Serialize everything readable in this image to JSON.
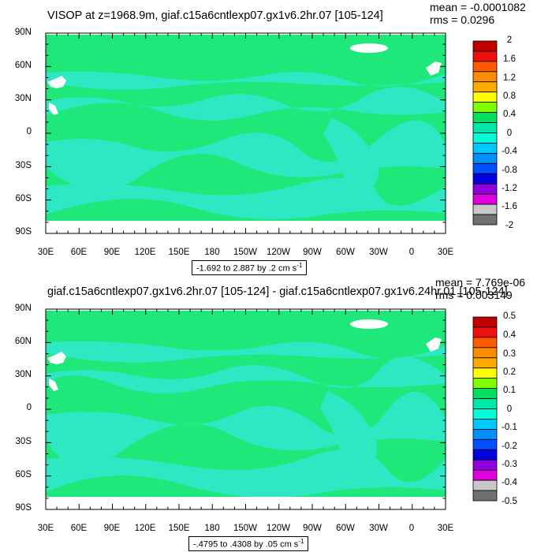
{
  "chart_data": [
    {
      "type": "heatmap",
      "title": "VISOP at z=1968.9m, giaf.c15a6cntlexp07.gx1v6.2hr.07 [105-124]",
      "stats": {
        "mean": "mean = -0.0001082",
        "rms": "rms = 0.0296"
      },
      "xlabel": "",
      "ylabel": "",
      "x_tick_labels": [
        "30E",
        "60E",
        "90E",
        "120E",
        "150E",
        "180",
        "150W",
        "120W",
        "90W",
        "60W",
        "30W",
        "0",
        "30E"
      ],
      "y_tick_labels": [
        "90N",
        "60N",
        "30N",
        "0",
        "30S",
        "60S",
        "90S"
      ],
      "range_label": "-1.692 to 2.887 by .2 cm s",
      "range_unit_sup": "-1",
      "colorbar_labels": [
        "2",
        "1.6",
        "1.2",
        "0.8",
        "0.4",
        "0",
        "-0.4",
        "-0.8",
        "-1.2",
        "-1.6",
        "-2"
      ],
      "colorbar_colors": [
        "#c00000",
        "#ee1010",
        "#ff5a00",
        "#ff8c00",
        "#ffaa00",
        "#ffff00",
        "#80ff00",
        "#00e060",
        "#00e8a8",
        "#00ffd8",
        "#00c8ff",
        "#0090ff",
        "#0050ff",
        "#0000e0",
        "#9000e0",
        "#e000e0",
        "#c8c8c8",
        "#707070"
      ],
      "field_colors": {
        "positive_small": "#1ee87a",
        "negative_small": "#2ee8c4",
        "missing": "#ffffff"
      }
    },
    {
      "type": "heatmap",
      "title": "giaf.c15a6cntlexp07.gx1v6.2hr.07 [105-124] - giaf.c15a6cntlexp07.gx1v6.24hr.01 [105-124]",
      "stats": {
        "mean": "mean = 7.769e-06",
        "rms": "rms = 0.003149"
      },
      "xlabel": "",
      "ylabel": "",
      "x_tick_labels": [
        "30E",
        "60E",
        "90E",
        "120E",
        "150E",
        "180",
        "150W",
        "120W",
        "90W",
        "60W",
        "30W",
        "0",
        "30E"
      ],
      "y_tick_labels": [
        "90N",
        "60N",
        "30N",
        "0",
        "30S",
        "60S",
        "90S"
      ],
      "range_label": "-.4795 to .4308 by .05 cm s",
      "range_unit_sup": "-1",
      "colorbar_labels": [
        "0.5",
        "0.4",
        "0.3",
        "0.2",
        "0.1",
        "0",
        "-0.1",
        "-0.2",
        "-0.3",
        "-0.4",
        "-0.5"
      ],
      "colorbar_colors": [
        "#c00000",
        "#ee1010",
        "#ff5a00",
        "#ff8c00",
        "#ffaa00",
        "#ffff00",
        "#80ff00",
        "#00e060",
        "#00e8a8",
        "#00ffd8",
        "#00c8ff",
        "#0090ff",
        "#0050ff",
        "#0000e0",
        "#9000e0",
        "#e000e0",
        "#c8c8c8",
        "#707070"
      ],
      "field_colors": {
        "positive_small": "#1ee87a",
        "negative_small": "#2ee8c4",
        "missing": "#ffffff"
      }
    }
  ]
}
